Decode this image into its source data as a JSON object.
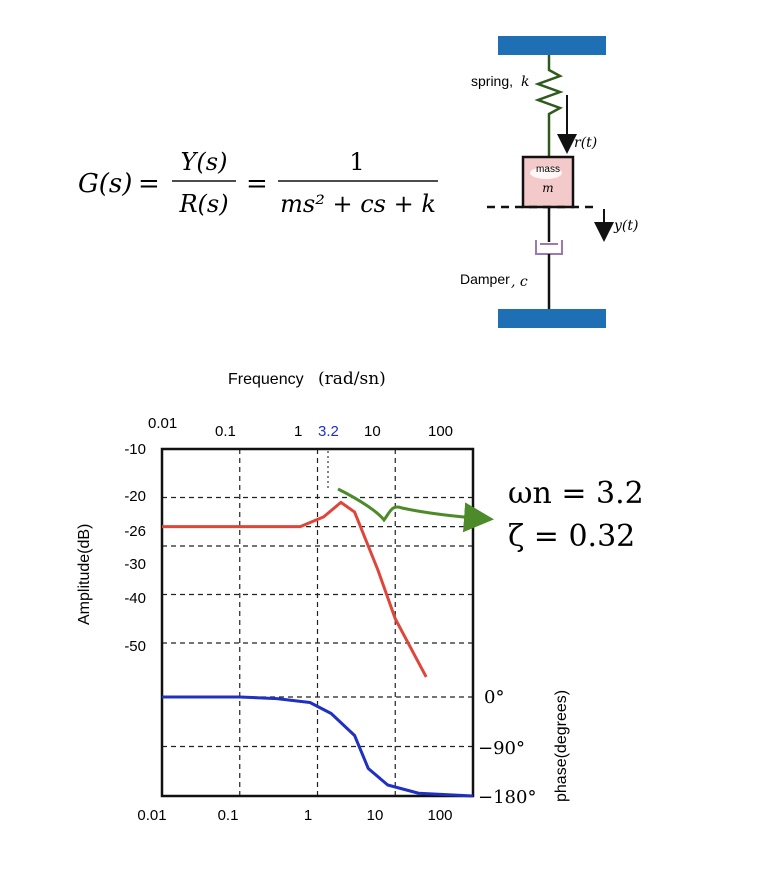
{
  "equation": {
    "lhs": "G(s)",
    "eq1": "=",
    "num1": "Y(s)",
    "den1": "R(s)",
    "eq2": "=",
    "num2": "1",
    "den2": "ms² + cs + k"
  },
  "mechanism": {
    "spring_label": "spring,",
    "spring_symbol": "k",
    "force_label": "r(t)",
    "mass_top": "mass",
    "mass_symbol": "m",
    "displacement_label": "y(t)",
    "damper_label": "Damper",
    "damper_symbol": ", c"
  },
  "colors": {
    "wall": "#1f6fb4",
    "spring": "#2e5a1c",
    "mass_fill": "#f3c9c9",
    "damper": "#9b78b8",
    "amplitude_curve": "#e0453a",
    "phase_curve": "#2030c0",
    "annotation_arrow": "#4c8a2a",
    "resonance_tick": "#1f2fd0"
  },
  "bode": {
    "top_axis_title": "Frequency",
    "top_axis_unit": "(rad/sn)",
    "top_ticks": [
      "0.01",
      "0.1",
      "1",
      "3.2",
      "10",
      "100"
    ],
    "bottom_ticks": [
      "0.01",
      "0.1",
      "1",
      "10",
      "100"
    ],
    "amplitude_ticks": [
      "-10",
      "-20",
      "-26",
      "-30",
      "-40",
      "-50"
    ],
    "amplitude_axis_label": "Amplitude(dB)",
    "phase_ticks": [
      "0°",
      "−90°",
      "−180°"
    ],
    "phase_axis_label": "phase(degrees)",
    "annotation_wn": "ωn = 3.2",
    "annotation_zeta": "ζ = 0.32"
  },
  "chart_data": {
    "type": "line",
    "x_scale": "log",
    "xlim": [
      0.01,
      100
    ],
    "resonance_frequency": 3.2,
    "series": [
      {
        "axis": "amplitude_dB",
        "x": [
          0.01,
          0.1,
          0.6,
          1.2,
          2.0,
          3.0,
          6.0,
          10.0,
          25.0
        ],
        "values": [
          -26,
          -26,
          -26,
          -24,
          -21,
          -23,
          -35,
          -45,
          -57
        ]
      },
      {
        "axis": "phase_deg",
        "x": [
          0.01,
          0.1,
          0.3,
          0.8,
          1.5,
          3.0,
          4.5,
          8.0,
          20.0,
          100.0
        ],
        "values": [
          0,
          0,
          -3,
          -10,
          -30,
          -70,
          -130,
          -160,
          -175,
          -180
        ]
      }
    ]
  }
}
